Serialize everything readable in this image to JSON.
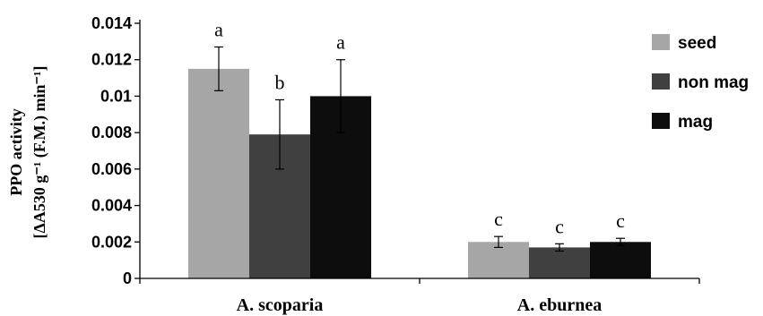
{
  "chart_data": {
    "type": "bar",
    "ylabel_line1": "PPO activity",
    "ylabel_line2": "[ΔA530 g⁻¹ (F.M.) min⁻¹]",
    "ylim": [
      0,
      0.014
    ],
    "yticks": [
      {
        "v": 0,
        "label": "0"
      },
      {
        "v": 0.002,
        "label": "0.002"
      },
      {
        "v": 0.004,
        "label": "0.004"
      },
      {
        "v": 0.006,
        "label": "0.006"
      },
      {
        "v": 0.008,
        "label": "0.008"
      },
      {
        "v": 0.01,
        "label": "0.01"
      },
      {
        "v": 0.012,
        "label": "0.012"
      },
      {
        "v": 0.014,
        "label": "0.014"
      }
    ],
    "categories": [
      "A. scoparia",
      "A. eburnea"
    ],
    "series": [
      {
        "name": "seed",
        "color": "#a6a6a6",
        "values": [
          0.0115,
          0.002
        ],
        "errors": [
          0.0012,
          0.0003
        ],
        "letters": [
          "a",
          "c"
        ]
      },
      {
        "name": "non mag",
        "color": "#404040",
        "values": [
          0.0079,
          0.0017
        ],
        "errors": [
          0.0019,
          0.0002
        ],
        "letters": [
          "b",
          "c"
        ]
      },
      {
        "name": "mag",
        "color": "#0d0d0d",
        "values": [
          0.01,
          0.002
        ],
        "errors": [
          0.002,
          0.0002
        ],
        "letters": [
          "a",
          "c"
        ]
      }
    ],
    "grid": false,
    "legend_position": "top-right"
  }
}
